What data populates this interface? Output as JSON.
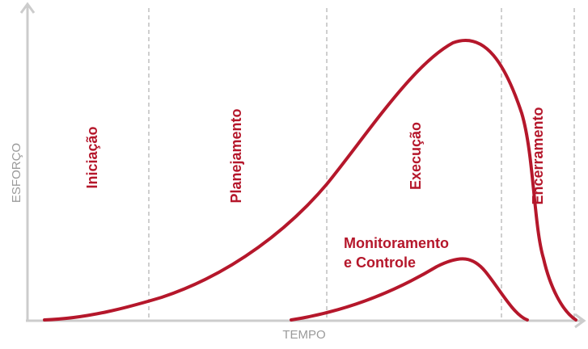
{
  "axes": {
    "y_label": "ESFORÇO",
    "x_label": "TEMPO"
  },
  "phases": [
    {
      "label": "Iniciação"
    },
    {
      "label": "Planejamento"
    },
    {
      "label": "Execução"
    },
    {
      "label": "Encerramento"
    }
  ],
  "curves": {
    "secondary_label_line1": "Monitoramento",
    "secondary_label_line2": "e Controle"
  },
  "colors": {
    "curve": "#b5172b",
    "axis": "#cccccc",
    "divider": "#bfbfbf",
    "axis_text": "#9a9a9a"
  },
  "icons": {
    "y_axis_arrow": "arrow-up-icon",
    "x_axis_arrow": "arrow-right-icon"
  }
}
